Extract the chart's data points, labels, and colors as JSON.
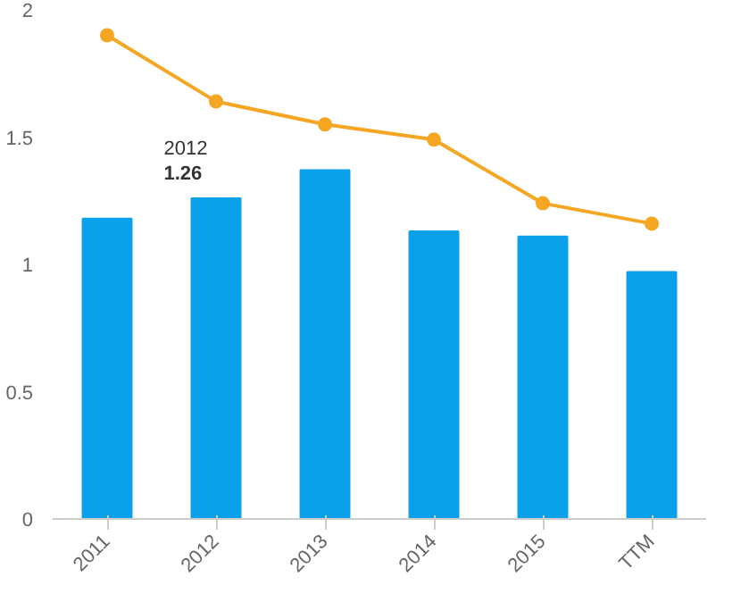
{
  "chart_data": {
    "type": "bar",
    "categories": [
      "2011",
      "2012",
      "2013",
      "2014",
      "2015",
      "TTM"
    ],
    "series": [
      {
        "color": "#0ba0ea",
        "values": [
          1.18,
          1.26,
          1.37,
          1.13,
          1.11,
          0.97
        ]
      },
      {
        "type": "line",
        "color": "#f5a623",
        "marker": "circle",
        "values": [
          1.9,
          1.64,
          1.55,
          1.49,
          1.24,
          1.16
        ]
      }
    ],
    "ylim": [
      0,
      2
    ],
    "yticks": [
      0,
      0.5,
      1,
      1.5,
      2
    ],
    "grid": false,
    "annotations": [
      {
        "text": "2012",
        "x": "2012",
        "y": 1.26
      },
      {
        "text": "1.26",
        "x": "2012",
        "y": 1.26
      }
    ]
  }
}
